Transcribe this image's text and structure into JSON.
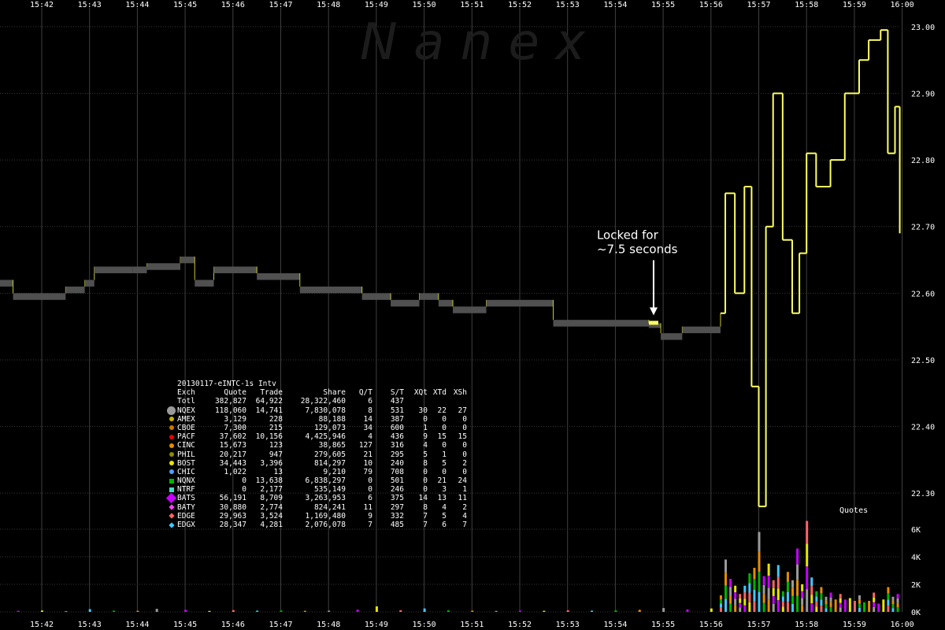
{
  "watermark": "N a n e x",
  "chart_data": {
    "type": "line",
    "title": "",
    "x_ticks": [
      "15:42",
      "15:43",
      "15:44",
      "15:45",
      "15:46",
      "15:47",
      "15:48",
      "15:49",
      "15:50",
      "15:51",
      "15:52",
      "15:53",
      "15:54",
      "15:55",
      "15:56",
      "15:57",
      "15:58",
      "15:59",
      "16:00"
    ],
    "y_ticks": [
      "23.00",
      "22.90",
      "22.80",
      "22.70",
      "22.60",
      "22.50",
      "22.40",
      "22.30"
    ],
    "ylim": [
      22.26,
      23.02
    ],
    "volume_ticks": [
      "6K",
      "4K",
      "2K",
      "0K"
    ],
    "volume_label": "Quotes",
    "annotation": {
      "lines": [
        "Locked for",
        "~7.5 seconds"
      ],
      "time": "15:54.8"
    },
    "series": [
      {
        "values": [
          {
            "t": "15:41.00",
            "bid": 22.62,
            "ask": 22.61
          },
          {
            "t": "15:41.40",
            "bid": 22.6,
            "ask": 22.59
          },
          {
            "t": "15:42.00",
            "bid": 22.6,
            "ask": 22.59
          },
          {
            "t": "15:42.50",
            "bid": 22.61,
            "ask": 22.6
          },
          {
            "t": "15:42.90",
            "bid": 22.62,
            "ask": 22.61
          },
          {
            "t": "15:43.10",
            "bid": 22.64,
            "ask": 22.63
          },
          {
            "t": "15:43.90",
            "bid": 22.64,
            "ask": 22.63
          },
          {
            "t": "15:44.20",
            "bid": 22.645,
            "ask": 22.635
          },
          {
            "t": "15:44.90",
            "bid": 22.655,
            "ask": 22.645
          },
          {
            "t": "15:45.20",
            "bid": 22.62,
            "ask": 22.61
          },
          {
            "t": "15:45.60",
            "bid": 22.64,
            "ask": 22.63
          },
          {
            "t": "15:46.50",
            "bid": 22.63,
            "ask": 22.62
          },
          {
            "t": "15:47.40",
            "bid": 22.61,
            "ask": 22.6
          },
          {
            "t": "15:48.70",
            "bid": 22.6,
            "ask": 22.59
          },
          {
            "t": "15:49.30",
            "bid": 22.59,
            "ask": 22.58
          },
          {
            "t": "15:49.90",
            "bid": 22.6,
            "ask": 22.59
          },
          {
            "t": "15:50.30",
            "bid": 22.59,
            "ask": 22.58
          },
          {
            "t": "15:50.60",
            "bid": 22.58,
            "ask": 22.57
          },
          {
            "t": "15:51.30",
            "bid": 22.59,
            "ask": 22.58
          },
          {
            "t": "15:52.70",
            "bid": 22.56,
            "ask": 22.55
          },
          {
            "t": "15:54.70",
            "bid": 22.555,
            "ask": 22.555
          },
          {
            "t": "15:54.95",
            "bid": 22.54,
            "ask": 22.53
          },
          {
            "t": "15:55.40",
            "bid": 22.55,
            "ask": 22.54
          },
          {
            "t": "15:56.20",
            "bid": 22.57,
            "ask": 22.55
          },
          {
            "t": "15:56.30",
            "bid": 22.75,
            "ask": 22.74
          },
          {
            "t": "15:56.50",
            "bid": 22.6,
            "ask": 22.59
          },
          {
            "t": "15:56.70",
            "bid": 22.76,
            "ask": 22.75
          },
          {
            "t": "15:56.85",
            "bid": 22.46,
            "ask": 22.44
          },
          {
            "t": "15:57.00",
            "bid": 22.28,
            "ask": 22.27
          },
          {
            "t": "15:57.15",
            "bid": 22.7,
            "ask": 22.69
          },
          {
            "t": "15:57.30",
            "bid": 22.9,
            "ask": 22.89
          },
          {
            "t": "15:57.50",
            "bid": 22.68,
            "ask": 22.67
          },
          {
            "t": "15:57.70",
            "bid": 22.57,
            "ask": 22.56
          },
          {
            "t": "15:57.85",
            "bid": 22.66,
            "ask": 22.65
          },
          {
            "t": "15:58.00",
            "bid": 22.81,
            "ask": 22.8
          },
          {
            "t": "15:58.20",
            "bid": 22.76,
            "ask": 22.75
          },
          {
            "t": "15:58.50",
            "bid": 22.8,
            "ask": 22.79
          },
          {
            "t": "15:58.80",
            "bid": 22.9,
            "ask": 22.89
          },
          {
            "t": "15:59.10",
            "bid": 22.95,
            "ask": 22.94
          },
          {
            "t": "15:59.30",
            "bid": 22.98,
            "ask": 22.97
          },
          {
            "t": "15:59.55",
            "bid": 22.995,
            "ask": 22.985
          },
          {
            "t": "15:59.70",
            "bid": 22.81,
            "ask": 22.79
          },
          {
            "t": "15:59.85",
            "bid": 22.88,
            "ask": 22.86
          },
          {
            "t": "15:59.95",
            "bid": 22.69,
            "ask": 22.68
          }
        ]
      }
    ],
    "volume": [
      {
        "t": "15:41.00",
        "v": 150
      },
      {
        "t": "15:41.50",
        "v": 80
      },
      {
        "t": "15:42.00",
        "v": 100
      },
      {
        "t": "15:42.50",
        "v": 60
      },
      {
        "t": "15:43.00",
        "v": 200
      },
      {
        "t": "15:43.50",
        "v": 90
      },
      {
        "t": "15:44.00",
        "v": 80
      },
      {
        "t": "15:44.40",
        "v": 220
      },
      {
        "t": "15:45.00",
        "v": 150
      },
      {
        "t": "15:45.50",
        "v": 70
      },
      {
        "t": "15:46.00",
        "v": 130
      },
      {
        "t": "15:46.50",
        "v": 90
      },
      {
        "t": "15:47.00",
        "v": 100
      },
      {
        "t": "15:47.50",
        "v": 80
      },
      {
        "t": "15:48.00",
        "v": 90
      },
      {
        "t": "15:48.60",
        "v": 160
      },
      {
        "t": "15:49.00",
        "v": 400
      },
      {
        "t": "15:49.50",
        "v": 120
      },
      {
        "t": "15:50.00",
        "v": 250
      },
      {
        "t": "15:50.50",
        "v": 110
      },
      {
        "t": "15:51.00",
        "v": 90
      },
      {
        "t": "15:51.50",
        "v": 70
      },
      {
        "t": "15:52.00",
        "v": 90
      },
      {
        "t": "15:52.50",
        "v": 80
      },
      {
        "t": "15:53.00",
        "v": 120
      },
      {
        "t": "15:53.50",
        "v": 90
      },
      {
        "t": "15:54.00",
        "v": 110
      },
      {
        "t": "15:54.50",
        "v": 150
      },
      {
        "t": "15:55.00",
        "v": 280
      },
      {
        "t": "15:55.50",
        "v": 180
      },
      {
        "t": "15:56.00",
        "v": 250
      },
      {
        "t": "15:56.20",
        "v": 1200
      },
      {
        "t": "15:56.30",
        "v": 3800
      },
      {
        "t": "15:56.40",
        "v": 2400
      },
      {
        "t": "15:56.50",
        "v": 1900
      },
      {
        "t": "15:56.60",
        "v": 1300
      },
      {
        "t": "15:56.70",
        "v": 1900
      },
      {
        "t": "15:56.80",
        "v": 2800
      },
      {
        "t": "15:56.90",
        "v": 3200
      },
      {
        "t": "15:57.00",
        "v": 5800
      },
      {
        "t": "15:57.10",
        "v": 2600
      },
      {
        "t": "15:57.20",
        "v": 3500
      },
      {
        "t": "15:57.30",
        "v": 2300
      },
      {
        "t": "15:57.40",
        "v": 3400
      },
      {
        "t": "15:57.50",
        "v": 1500
      },
      {
        "t": "15:57.60",
        "v": 2900
      },
      {
        "t": "15:57.70",
        "v": 2300
      },
      {
        "t": "15:57.80",
        "v": 4600
      },
      {
        "t": "15:57.90",
        "v": 2000
      },
      {
        "t": "15:58.00",
        "v": 6600
      },
      {
        "t": "15:58.10",
        "v": 2500
      },
      {
        "t": "15:58.20",
        "v": 1500
      },
      {
        "t": "15:58.30",
        "v": 1800
      },
      {
        "t": "15:58.40",
        "v": 1100
      },
      {
        "t": "15:58.50",
        "v": 1400
      },
      {
        "t": "15:58.60",
        "v": 900
      },
      {
        "t": "15:58.70",
        "v": 1300
      },
      {
        "t": "15:58.80",
        "v": 900
      },
      {
        "t": "15:58.90",
        "v": 1000
      },
      {
        "t": "15:59.00",
        "v": 800
      },
      {
        "t": "15:59.10",
        "v": 1200
      },
      {
        "t": "15:59.20",
        "v": 700
      },
      {
        "t": "15:59.30",
        "v": 800
      },
      {
        "t": "15:59.40",
        "v": 1400
      },
      {
        "t": "15:59.50",
        "v": 600
      },
      {
        "t": "15:59.60",
        "v": 900
      },
      {
        "t": "15:59.70",
        "v": 1800
      },
      {
        "t": "15:59.80",
        "v": 1100
      },
      {
        "t": "15:59.90",
        "v": 1300
      }
    ]
  },
  "table": {
    "title": "20130117-eINTC-1s Intv",
    "headers": [
      "Exch",
      "Quote",
      "Trade",
      "Share",
      "Q/T",
      "S/T",
      "XQt",
      "XTd",
      "XSh"
    ],
    "rows": [
      {
        "marker": "",
        "color": "",
        "cells": [
          "Totl",
          "382,827",
          "64,922",
          "28,322,460",
          "6",
          "437",
          "",
          "",
          ""
        ]
      },
      {
        "marker": "circle-large",
        "color": "#9a9a9a",
        "cells": [
          "NQEX",
          "118,060",
          "14,741",
          "7,830,078",
          "8",
          "531",
          "30",
          "22",
          "27"
        ]
      },
      {
        "marker": "circle",
        "color": "#c8b400",
        "cells": [
          "AMEX",
          "3,129",
          "228",
          "88,188",
          "14",
          "387",
          "0",
          "0",
          "0"
        ]
      },
      {
        "marker": "circle",
        "color": "#c87800",
        "cells": [
          "CBOE",
          "7,300",
          "215",
          "129,073",
          "34",
          "600",
          "1",
          "0",
          "0"
        ]
      },
      {
        "marker": "circle",
        "color": "#e60000",
        "cells": [
          "PACF",
          "37,602",
          "10,156",
          "4,425,946",
          "4",
          "436",
          "9",
          "15",
          "15"
        ]
      },
      {
        "marker": "circle",
        "color": "#e68c00",
        "cells": [
          "CINC",
          "15,673",
          "123",
          "38,865",
          "127",
          "316",
          "4",
          "0",
          "0"
        ]
      },
      {
        "marker": "circle",
        "color": "#8c8c00",
        "cells": [
          "PHIL",
          "20,217",
          "947",
          "279,605",
          "21",
          "295",
          "5",
          "1",
          "0"
        ]
      },
      {
        "marker": "circle",
        "color": "#e6e600",
        "cells": [
          "BOST",
          "34,443",
          "3,396",
          "814,297",
          "10",
          "240",
          "8",
          "5",
          "2"
        ]
      },
      {
        "marker": "circle",
        "color": "#50a0ff",
        "cells": [
          "CHIC",
          "1,022",
          "13",
          "9,210",
          "79",
          "708",
          "0",
          "0",
          "0"
        ]
      },
      {
        "marker": "square",
        "color": "#00b400",
        "cells": [
          "NQNX",
          "0",
          "13,638",
          "6,838,297",
          "0",
          "501",
          "0",
          "21",
          "24"
        ]
      },
      {
        "marker": "square",
        "color": "#40e0c0",
        "cells": [
          "NTRF",
          "0",
          "2,177",
          "535,149",
          "0",
          "246",
          "0",
          "3",
          "1"
        ]
      },
      {
        "marker": "diamond-large",
        "color": "#c800ff",
        "cells": [
          "BATS",
          "56,191",
          "8,709",
          "3,263,953",
          "6",
          "375",
          "14",
          "13",
          "11"
        ]
      },
      {
        "marker": "diamond",
        "color": "#ff40ff",
        "cells": [
          "BATY",
          "30,880",
          "2,774",
          "824,241",
          "11",
          "297",
          "8",
          "4",
          "2"
        ]
      },
      {
        "marker": "diamond",
        "color": "#ff6464",
        "cells": [
          "EDGE",
          "29,963",
          "3,524",
          "1,169,480",
          "9",
          "332",
          "7",
          "5",
          "4"
        ]
      },
      {
        "marker": "diamond",
        "color": "#40c8ff",
        "cells": [
          "EDGX",
          "28,347",
          "4,281",
          "2,076,078",
          "7",
          "485",
          "7",
          "6",
          "7"
        ]
      }
    ]
  }
}
